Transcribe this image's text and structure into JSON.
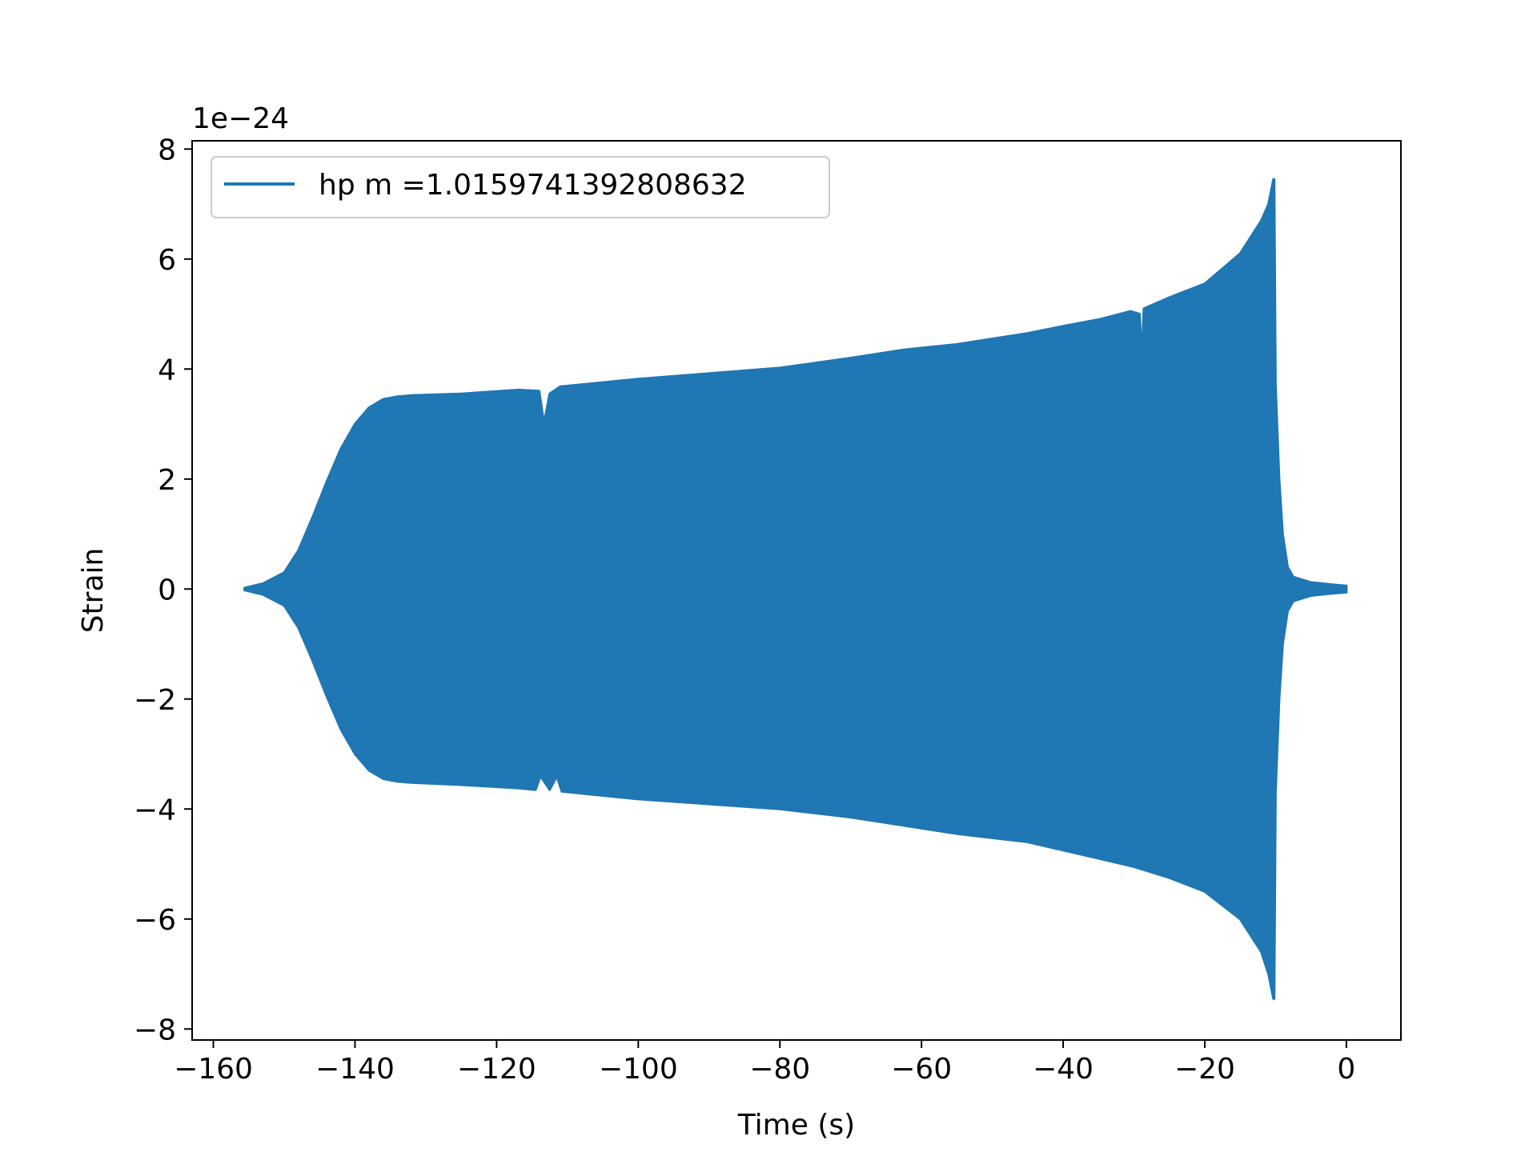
{
  "chart_data": {
    "type": "line",
    "title": "",
    "xlabel": "Time (s)",
    "ylabel": "Strain",
    "y_offset_label": "1e−24",
    "y_scale_factor": 1e-24,
    "xlim": [
      -163,
      7.7
    ],
    "ylim": [
      -8.2,
      8.15
    ],
    "xticks": [
      -160,
      -140,
      -120,
      -100,
      -80,
      -60,
      -40,
      -20,
      0
    ],
    "xtick_labels": [
      "−160",
      "−140",
      "−120",
      "−100",
      "−80",
      "−60",
      "−40",
      "−20",
      "0"
    ],
    "yticks": [
      -8,
      -6,
      -4,
      -2,
      0,
      2,
      4,
      6,
      8
    ],
    "ytick_labels": [
      "−8",
      "−6",
      "−4",
      "−2",
      "0",
      "2",
      "4",
      "6",
      "8"
    ],
    "grid": false,
    "legend_position": "top-left",
    "series": [
      {
        "name": "hp m =1.0159741392808632",
        "color": "#1f77b4",
        "description_kind": "oscillating chirp; values are envelope amplitudes (×1e-24)",
        "envelope_upper": {
          "x": [
            -155.6,
            -153,
            -150,
            -148,
            -146,
            -144,
            -142,
            -140,
            -138,
            -136,
            -134,
            -132,
            -125,
            -117,
            -114,
            -113.3,
            -112.5,
            -111,
            -100,
            -80,
            -70,
            -62.5,
            -55,
            -45,
            -40,
            -35,
            -30.5,
            -29.2,
            -28.9,
            -28.6,
            -25,
            -20,
            -15,
            -12,
            -11,
            -10.3,
            -10.2,
            -10.0,
            -9.5,
            -9.0,
            -8.3,
            -7.5,
            -5,
            -2,
            0
          ],
          "y": [
            0.02,
            0.1,
            0.3,
            0.7,
            1.3,
            1.95,
            2.55,
            3.0,
            3.3,
            3.45,
            3.5,
            3.52,
            3.55,
            3.62,
            3.6,
            3.0,
            3.55,
            3.68,
            3.82,
            4.02,
            4.2,
            4.35,
            4.45,
            4.65,
            4.78,
            4.9,
            5.05,
            5.0,
            4.15,
            5.1,
            5.3,
            5.55,
            6.1,
            6.7,
            7.0,
            7.45,
            7.45,
            3.7,
            2.0,
            1.0,
            0.4,
            0.22,
            0.12,
            0.08,
            0.06
          ]
        },
        "envelope_lower": {
          "x": [
            -155.6,
            -153,
            -150,
            -148,
            -146,
            -144,
            -142,
            -140,
            -138,
            -136,
            -134,
            -132,
            -125,
            -117,
            -114.5,
            -113.8,
            -112.5,
            -111.5,
            -110.8,
            -100,
            -80,
            -70,
            -62.5,
            -55,
            -45,
            -40,
            -35,
            -30,
            -25,
            -20,
            -15,
            -12,
            -11,
            -10.3,
            -10.2,
            -10.0,
            -9.5,
            -9.0,
            -8.3,
            -7.5,
            -5,
            -2,
            0
          ],
          "y": [
            -0.02,
            -0.1,
            -0.3,
            -0.7,
            -1.3,
            -1.95,
            -2.55,
            -3.0,
            -3.3,
            -3.45,
            -3.5,
            -3.52,
            -3.56,
            -3.62,
            -3.65,
            -3.4,
            -3.65,
            -3.4,
            -3.68,
            -3.82,
            -4.0,
            -4.15,
            -4.3,
            -4.45,
            -4.6,
            -4.75,
            -4.9,
            -5.05,
            -5.25,
            -5.5,
            -6.0,
            -6.6,
            -7.0,
            -7.45,
            -7.45,
            -3.7,
            -2.0,
            -1.0,
            -0.4,
            -0.22,
            -0.12,
            -0.08,
            -0.06
          ]
        }
      }
    ]
  }
}
